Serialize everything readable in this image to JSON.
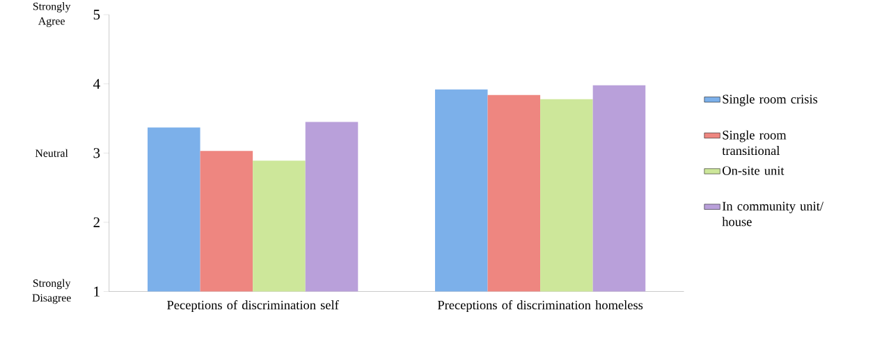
{
  "chart_data": {
    "type": "bar",
    "categories": [
      "Peceptions of discrimination self",
      "Preceptions of discrimination homeless"
    ],
    "series": [
      {
        "name": "Single room crisis",
        "color": "#7cb0ea",
        "values": [
          3.37,
          3.92
        ]
      },
      {
        "name": "Single room transitional",
        "color": "#ee8680",
        "values": [
          3.03,
          3.84
        ]
      },
      {
        "name": "On-site unit",
        "color": "#cde79a",
        "values": [
          2.89,
          3.78
        ]
      },
      {
        "name": "In community unit/ house",
        "color": "#b9a0da",
        "values": [
          3.45,
          3.98
        ]
      }
    ],
    "ylim": [
      1,
      5
    ],
    "yticks": [
      1,
      2,
      3,
      4,
      5
    ],
    "grid": false,
    "legend": "right",
    "annotations": [
      "Strongly Agree",
      "Neutral",
      "Strongly Disagree"
    ]
  }
}
